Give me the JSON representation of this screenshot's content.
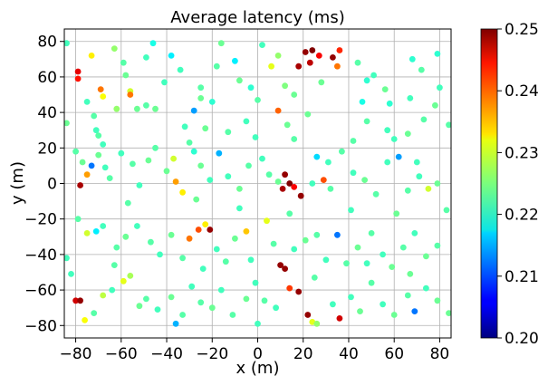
{
  "chart_data": {
    "type": "scatter",
    "title": "Average latency (ms)",
    "xlabel": "x (m)",
    "ylabel": "y (m)",
    "xlim": [
      -85,
      85
    ],
    "ylim": [
      -87,
      87
    ],
    "xticks": [
      -80,
      -60,
      -40,
      -20,
      0,
      20,
      40,
      60,
      80
    ],
    "yticks": [
      -80,
      -60,
      -40,
      -20,
      0,
      20,
      40,
      60,
      80
    ],
    "xtick_labels": [
      "−80",
      "−60",
      "−40",
      "−20",
      "0",
      "20",
      "40",
      "60",
      "80"
    ],
    "ytick_labels": [
      "−80",
      "−60",
      "−40",
      "−20",
      "0",
      "20",
      "40",
      "60",
      "80"
    ],
    "grid": true,
    "colormap": "jet",
    "colorbar": {
      "min": 0.2,
      "max": 0.25,
      "ticks": [
        0.2,
        0.21,
        0.22,
        0.23,
        0.24,
        0.25
      ],
      "tick_labels": [
        "0.20",
        "0.21",
        "0.22",
        "0.23",
        "0.24",
        "0.25"
      ]
    },
    "points": [
      [
        -79,
        63,
        0.245
      ],
      [
        -79,
        59,
        0.243
      ],
      [
        -73,
        72,
        0.232
      ],
      [
        -69,
        53,
        0.238
      ],
      [
        -68,
        49,
        0.231
      ],
      [
        -75,
        46,
        0.222
      ],
      [
        -72,
        38,
        0.223
      ],
      [
        -71,
        30,
        0.222
      ],
      [
        -70,
        27,
        0.223
      ],
      [
        -68,
        22,
        0.222
      ],
      [
        -63,
        76,
        0.226
      ],
      [
        -59,
        68,
        0.223
      ],
      [
        -58,
        61,
        0.224
      ],
      [
        -56,
        52,
        0.229
      ],
      [
        -56,
        50,
        0.238
      ],
      [
        -53,
        42,
        0.224
      ],
      [
        -49,
        44,
        0.223
      ],
      [
        -45,
        42,
        0.224
      ],
      [
        -46,
        79,
        0.22
      ],
      [
        -49,
        71,
        0.222
      ],
      [
        -38,
        72,
        0.218
      ],
      [
        -34,
        64,
        0.222
      ],
      [
        -25,
        54,
        0.223
      ],
      [
        -25,
        48,
        0.224
      ],
      [
        -20,
        46,
        0.221
      ],
      [
        -28,
        41,
        0.214
      ],
      [
        -32,
        32,
        0.222
      ],
      [
        -23,
        31,
        0.224
      ],
      [
        -16,
        79,
        0.224
      ],
      [
        -10,
        69,
        0.218
      ],
      [
        -8,
        58,
        0.224
      ],
      [
        -3,
        54,
        0.221
      ],
      [
        0,
        47,
        0.223
      ],
      [
        -5,
        35,
        0.222
      ],
      [
        -13,
        29,
        0.223
      ],
      [
        6,
        66,
        0.23
      ],
      [
        9,
        72,
        0.226
      ],
      [
        12,
        55,
        0.225
      ],
      [
        16,
        50,
        0.224
      ],
      [
        9,
        41,
        0.239
      ],
      [
        13,
        33,
        0.224
      ],
      [
        16,
        25,
        0.223
      ],
      [
        18,
        66,
        0.248
      ],
      [
        21,
        74,
        0.249
      ],
      [
        24,
        75,
        0.25
      ],
      [
        23,
        68,
        0.247
      ],
      [
        27,
        72,
        0.244
      ],
      [
        33,
        71,
        0.249
      ],
      [
        36,
        75,
        0.242
      ],
      [
        35,
        66,
        0.238
      ],
      [
        44,
        68,
        0.223
      ],
      [
        48,
        58,
        0.221
      ],
      [
        51,
        61,
        0.222
      ],
      [
        56,
        53,
        0.224
      ],
      [
        58,
        45,
        0.221
      ],
      [
        48,
        35,
        0.223
      ],
      [
        57,
        30,
        0.222
      ],
      [
        60,
        25,
        0.222
      ],
      [
        68,
        70,
        0.221
      ],
      [
        72,
        64,
        0.223
      ],
      [
        79,
        73,
        0.221
      ],
      [
        80,
        54,
        0.222
      ],
      [
        78,
        44,
        0.224
      ],
      [
        73,
        36,
        0.223
      ],
      [
        66,
        28,
        0.224
      ],
      [
        -80,
        18,
        0.223
      ],
      [
        -77,
        12,
        0.224
      ],
      [
        -75,
        5,
        0.236
      ],
      [
        -73,
        10,
        0.212
      ],
      [
        -78,
        -1,
        0.248
      ],
      [
        -70,
        16,
        0.224
      ],
      [
        -67,
        9,
        0.222
      ],
      [
        -65,
        3,
        0.223
      ],
      [
        -60,
        17,
        0.222
      ],
      [
        -55,
        11,
        0.223
      ],
      [
        -52,
        -1,
        0.222
      ],
      [
        -48,
        13,
        0.224
      ],
      [
        -45,
        20,
        0.223
      ],
      [
        -40,
        7,
        0.224
      ],
      [
        -37,
        14,
        0.229
      ],
      [
        -36,
        1,
        0.236
      ],
      [
        -33,
        -5,
        0.232
      ],
      [
        -28,
        18,
        0.221
      ],
      [
        -25,
        10,
        0.224
      ],
      [
        -21,
        2,
        0.222
      ],
      [
        -17,
        17,
        0.215
      ],
      [
        -13,
        4,
        0.222
      ],
      [
        -8,
        -3,
        0.224
      ],
      [
        -4,
        10,
        0.223
      ],
      [
        2,
        14,
        0.222
      ],
      [
        5,
        5,
        0.223
      ],
      [
        9,
        1,
        0.224
      ],
      [
        12,
        5,
        0.249
      ],
      [
        14,
        0,
        0.25
      ],
      [
        16,
        -2,
        0.244
      ],
      [
        11,
        -3,
        0.248
      ],
      [
        19,
        -7,
        0.249
      ],
      [
        24,
        0,
        0.222
      ],
      [
        29,
        2,
        0.24
      ],
      [
        32,
        -3,
        0.223
      ],
      [
        26,
        15,
        0.217
      ],
      [
        31,
        12,
        0.222
      ],
      [
        37,
        18,
        0.223
      ],
      [
        42,
        6,
        0.222
      ],
      [
        47,
        2,
        0.224
      ],
      [
        52,
        -6,
        0.223
      ],
      [
        57,
        12,
        0.222
      ],
      [
        62,
        15,
        0.214
      ],
      [
        66,
        -4,
        0.223
      ],
      [
        71,
        4,
        0.222
      ],
      [
        75,
        -3,
        0.229
      ],
      [
        79,
        0,
        0.224
      ],
      [
        -79,
        -20,
        0.223
      ],
      [
        -75,
        -28,
        0.229
      ],
      [
        -71,
        -27,
        0.218
      ],
      [
        -68,
        -24,
        0.222
      ],
      [
        -62,
        -36,
        0.223
      ],
      [
        -58,
        -30,
        0.224
      ],
      [
        -53,
        -24,
        0.222
      ],
      [
        -47,
        -33,
        0.223
      ],
      [
        -43,
        -40,
        0.222
      ],
      [
        -38,
        -29,
        0.224
      ],
      [
        -33,
        -42,
        0.223
      ],
      [
        -30,
        -31,
        0.238
      ],
      [
        -26,
        -26,
        0.24
      ],
      [
        -23,
        -23,
        0.232
      ],
      [
        -21,
        -26,
        0.249
      ],
      [
        -18,
        -37,
        0.222
      ],
      [
        -14,
        -44,
        0.223
      ],
      [
        -10,
        -31,
        0.224
      ],
      [
        -5,
        -27,
        0.234
      ],
      [
        -3,
        -43,
        0.222
      ],
      [
        4,
        -21,
        0.23
      ],
      [
        7,
        -34,
        0.223
      ],
      [
        10,
        -46,
        0.249
      ],
      [
        12,
        -48,
        0.249
      ],
      [
        16,
        -37,
        0.222
      ],
      [
        21,
        -32,
        0.224
      ],
      [
        26,
        -29,
        0.223
      ],
      [
        30,
        -43,
        0.222
      ],
      [
        35,
        -29,
        0.212
      ],
      [
        39,
        -45,
        0.223
      ],
      [
        44,
        -36,
        0.224
      ],
      [
        50,
        -28,
        0.223
      ],
      [
        55,
        -40,
        0.222
      ],
      [
        59,
        -47,
        0.224
      ],
      [
        64,
        -36,
        0.223
      ],
      [
        69,
        -28,
        0.222
      ],
      [
        74,
        -41,
        0.224
      ],
      [
        79,
        -35,
        0.223
      ],
      [
        -80,
        -66,
        0.246
      ],
      [
        -78,
        -66,
        0.249
      ],
      [
        -76,
        -77,
        0.231
      ],
      [
        -72,
        -73,
        0.223
      ],
      [
        -68,
        -63,
        0.228
      ],
      [
        -64,
        -60,
        0.222
      ],
      [
        -59,
        -55,
        0.23
      ],
      [
        -56,
        -52,
        0.227
      ],
      [
        -52,
        -69,
        0.224
      ],
      [
        -49,
        -65,
        0.223
      ],
      [
        -44,
        -71,
        0.222
      ],
      [
        -38,
        -64,
        0.224
      ],
      [
        -33,
        -74,
        0.223
      ],
      [
        -29,
        -58,
        0.222
      ],
      [
        -25,
        -67,
        0.223
      ],
      [
        -20,
        -70,
        0.224
      ],
      [
        -16,
        -60,
        0.222
      ],
      [
        -11,
        -74,
        0.223
      ],
      [
        -5,
        -65,
        0.224
      ],
      [
        -1,
        -56,
        0.222
      ],
      [
        3,
        -66,
        0.223
      ],
      [
        8,
        -70,
        0.222
      ],
      [
        14,
        -59,
        0.241
      ],
      [
        18,
        -61,
        0.249
      ],
      [
        22,
        -74,
        0.249
      ],
      [
        24,
        -78,
        0.23
      ],
      [
        26,
        -79,
        0.226
      ],
      [
        33,
        -68,
        0.222
      ],
      [
        36,
        -76,
        0.246
      ],
      [
        41,
        -64,
        0.222
      ],
      [
        45,
        -72,
        0.224
      ],
      [
        50,
        -56,
        0.223
      ],
      [
        55,
        -68,
        0.222
      ],
      [
        60,
        -74,
        0.224
      ],
      [
        66,
        -63,
        0.223
      ],
      [
        69,
        -72,
        0.212
      ],
      [
        74,
        -59,
        0.222
      ],
      [
        79,
        -66,
        0.224
      ],
      [
        0,
        -79,
        0.222
      ],
      [
        -36,
        -79,
        0.215
      ],
      [
        -84,
        79,
        0.222
      ],
      [
        -84,
        34,
        0.224
      ],
      [
        -84,
        -42,
        0.222
      ],
      [
        84,
        33,
        0.223
      ],
      [
        84,
        -73,
        0.224
      ],
      [
        -62,
        42,
        0.226
      ],
      [
        -41,
        57,
        0.222
      ],
      [
        -18,
        66,
        0.223
      ],
      [
        2,
        78,
        0.222
      ],
      [
        28,
        57,
        0.224
      ],
      [
        46,
        46,
        0.22
      ],
      [
        67,
        48,
        0.222
      ],
      [
        -30,
        23,
        0.223
      ],
      [
        -1,
        26,
        0.222
      ],
      [
        22,
        39,
        0.224
      ],
      [
        42,
        24,
        0.223
      ],
      [
        70,
        12,
        0.222
      ],
      [
        -57,
        -11,
        0.223
      ],
      [
        -27,
        -9,
        0.224
      ],
      [
        -8,
        -14,
        0.222
      ],
      [
        14,
        -17,
        0.223
      ],
      [
        41,
        -15,
        0.222
      ],
      [
        61,
        -17,
        0.224
      ],
      [
        -63,
        -46,
        0.223
      ],
      [
        -24,
        -48,
        0.222
      ],
      [
        25,
        -53,
        0.223
      ],
      [
        48,
        -45,
        0.222
      ],
      [
        67,
        -51,
        0.224
      ],
      [
        -82,
        -51,
        0.222
      ],
      [
        83,
        -15,
        0.223
      ]
    ]
  }
}
